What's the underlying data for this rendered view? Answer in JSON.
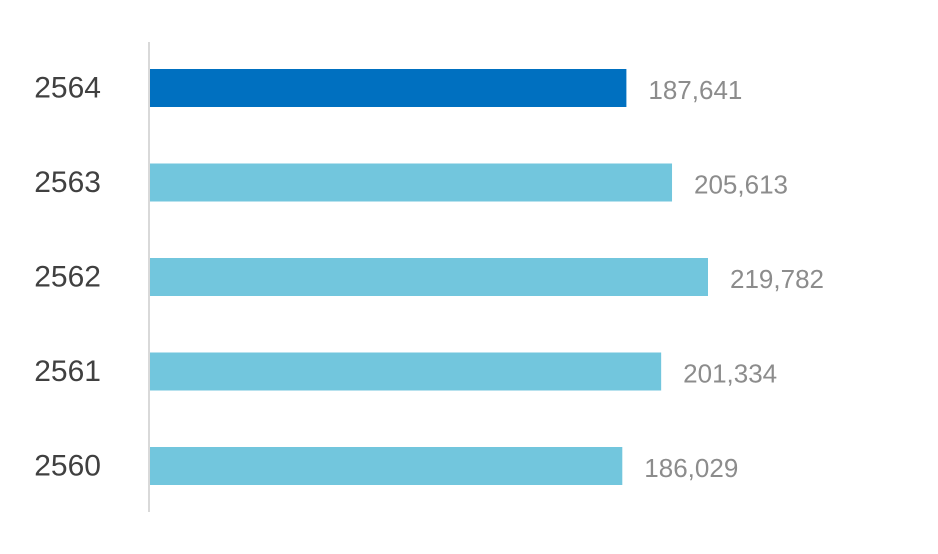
{
  "chart_data": {
    "type": "bar",
    "orientation": "horizontal",
    "title": "",
    "xlabel": "",
    "ylabel": "",
    "categories": [
      "2564",
      "2563",
      "2562",
      "2561",
      "2560"
    ],
    "values": [
      187641,
      205613,
      219782,
      201334,
      186029
    ],
    "value_labels": [
      "187,641",
      "205,613",
      "219,782",
      "201,334",
      "186,029"
    ],
    "highlight_category": "2564",
    "grid": false,
    "legend": "none",
    "xlim": [
      0,
      219782
    ],
    "colors": {
      "highlight": "#0070C0",
      "default": "#72C6DD",
      "axis": "#D9D9D9",
      "category_text": "#404040",
      "value_text": "#8C8C8C"
    }
  }
}
